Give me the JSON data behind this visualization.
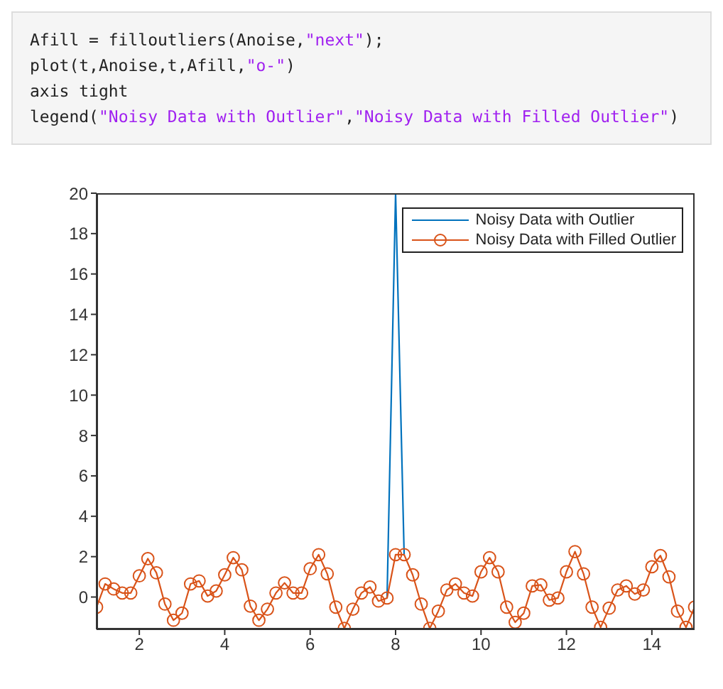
{
  "chart_data": {
    "type": "line",
    "annotations": [
      "Afill = filloutliers(Anoise,\"next\");",
      "plot(t,Anoise,t,Afill,\"o-\")",
      "axis tight",
      "legend(\"Noisy Data with Outlier\",\"Noisy Data with Filled Outlier\")"
    ],
    "x": [
      1.0,
      1.2,
      1.4,
      1.6,
      1.8,
      2.0,
      2.2,
      2.4,
      2.6,
      2.8,
      3.0,
      3.2,
      3.4,
      3.6,
      3.8,
      4.0,
      4.2,
      4.4,
      4.6,
      4.8,
      5.0,
      5.2,
      5.4,
      5.6,
      5.8,
      6.0,
      6.2,
      6.4,
      6.6,
      6.8,
      7.0,
      7.2,
      7.4,
      7.6,
      7.8,
      8.0,
      8.2,
      8.4,
      8.6,
      8.8,
      9.0,
      9.2,
      9.4,
      9.6,
      9.8,
      10.0,
      10.2,
      10.4,
      10.6,
      10.8,
      11.0,
      11.2,
      11.4,
      11.6,
      11.8,
      12.0,
      12.2,
      12.4,
      12.6,
      12.8,
      13.0,
      13.2,
      13.4,
      13.6,
      13.8,
      14.0,
      14.2,
      14.4,
      14.6,
      14.8,
      15.0
    ],
    "series": [
      {
        "name": "Noisy Data with Outlier",
        "color": "#0072bd",
        "marker": "none",
        "values": [
          null,
          null,
          null,
          null,
          null,
          null,
          null,
          null,
          null,
          null,
          null,
          null,
          null,
          null,
          null,
          null,
          null,
          null,
          null,
          null,
          null,
          null,
          null,
          null,
          null,
          null,
          null,
          null,
          null,
          null,
          null,
          null,
          null,
          null,
          -0.05,
          20,
          2.1,
          null,
          null,
          null,
          null,
          null,
          null,
          null,
          null,
          null,
          null,
          null,
          null,
          null,
          null,
          null,
          null,
          null,
          null,
          null,
          null,
          null,
          null,
          null,
          null,
          null,
          null,
          null,
          null,
          null,
          null,
          null,
          null,
          null,
          null
        ]
      },
      {
        "name": "Noisy Data with Filled Outlier",
        "color": "#d95319",
        "marker": "circle",
        "values": [
          -0.5,
          0.65,
          0.4,
          0.2,
          0.2,
          1.05,
          1.9,
          1.2,
          -0.35,
          -1.15,
          -0.8,
          0.65,
          0.8,
          0.05,
          0.3,
          1.1,
          1.95,
          1.35,
          -0.45,
          -1.15,
          -0.6,
          0.2,
          0.7,
          0.2,
          0.2,
          1.4,
          2.1,
          1.15,
          -0.5,
          -1.55,
          -0.6,
          0.2,
          0.5,
          -0.2,
          -0.05,
          2.1,
          2.1,
          1.1,
          -0.35,
          -1.55,
          -0.7,
          0.35,
          0.65,
          0.2,
          0.05,
          1.25,
          1.95,
          1.25,
          -0.5,
          -1.25,
          -0.8,
          0.55,
          0.6,
          -0.15,
          -0.05,
          1.25,
          2.25,
          1.15,
          -0.5,
          -1.5,
          -0.55,
          0.35,
          0.55,
          0.15,
          0.35,
          1.5,
          2.05,
          1.0,
          -0.7,
          -1.5,
          -0.5
        ]
      }
    ],
    "xlim": [
      1,
      15
    ],
    "xticks": [
      2,
      4,
      6,
      8,
      10,
      12,
      14
    ],
    "ylim": [
      -1.6,
      20
    ],
    "yticks": [
      0,
      2,
      4,
      6,
      8,
      10,
      12,
      14,
      16,
      18,
      20
    ],
    "grid": false,
    "legend": "top right",
    "line_style": "solid"
  }
}
